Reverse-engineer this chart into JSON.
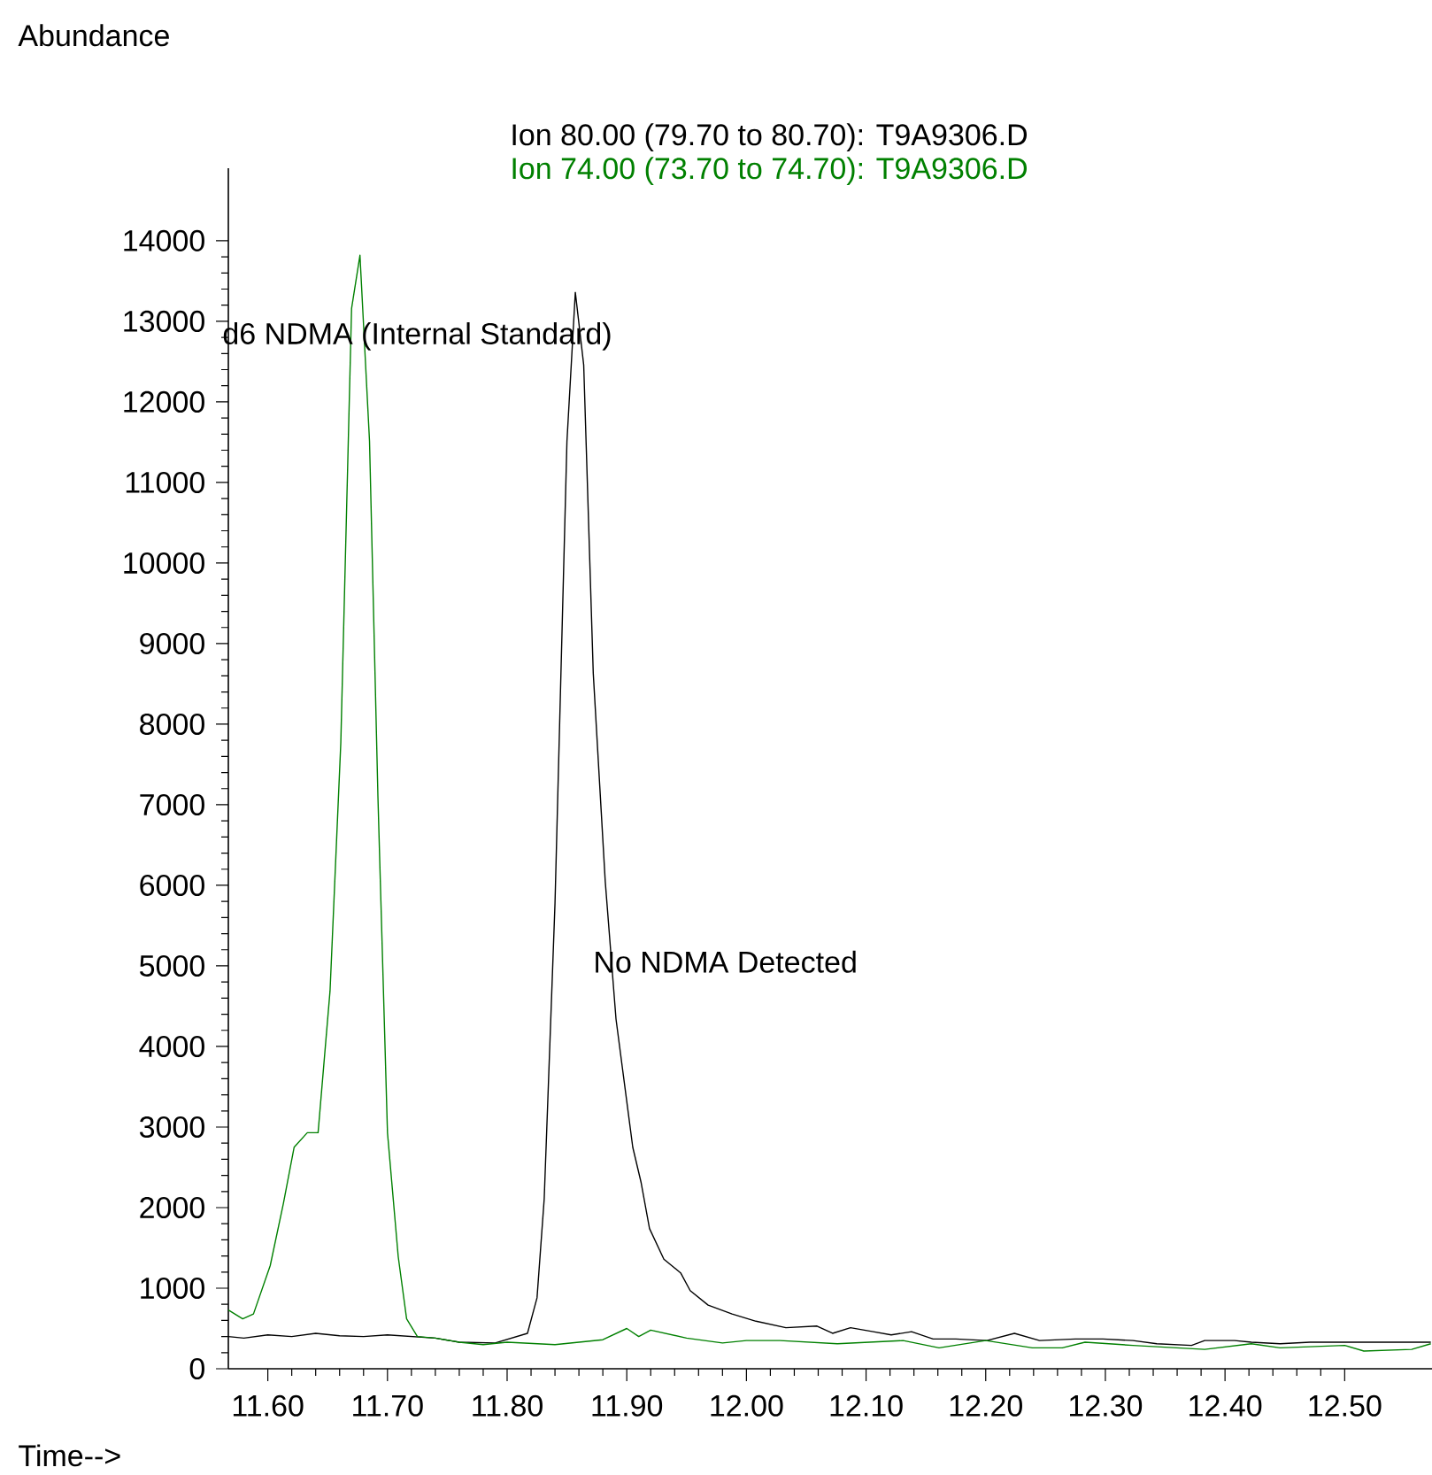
{
  "chart_data": {
    "type": "line",
    "xlabel": "Time-->",
    "ylabel": "Abundance",
    "legend": "top",
    "marker": "none",
    "line_style": "solid",
    "grid": false,
    "xlim": [
      11.567,
      12.573
    ],
    "ylim": [
      0,
      14900
    ],
    "xticks": [
      {
        "value": 11.6,
        "label": "11.60"
      },
      {
        "value": 11.7,
        "label": "11.70"
      },
      {
        "value": 11.8,
        "label": "11.80"
      },
      {
        "value": 11.9,
        "label": "11.90"
      },
      {
        "value": 12.0,
        "label": "12.00"
      },
      {
        "value": 12.1,
        "label": "12.10"
      },
      {
        "value": 12.2,
        "label": "12.20"
      },
      {
        "value": 12.3,
        "label": "12.30"
      },
      {
        "value": 12.4,
        "label": "12.40"
      },
      {
        "value": 12.5,
        "label": "12.50"
      }
    ],
    "yticks": [
      0,
      1000,
      2000,
      3000,
      4000,
      5000,
      6000,
      7000,
      8000,
      9000,
      10000,
      11000,
      12000,
      13000,
      14000
    ],
    "annotations": [
      "d6 NDMA (Internal Standard)",
      "No NDMA Detected"
    ],
    "series": [
      {
        "name": "Ion  80.00 (79.70 to 80.70): T9A9306.D",
        "color": "#000000",
        "x": [
          11.567,
          11.58,
          11.6,
          11.62,
          11.64,
          11.66,
          11.68,
          11.7,
          11.72,
          11.74,
          11.76,
          11.79,
          11.817,
          11.825,
          11.831,
          11.84,
          11.85,
          11.857,
          11.864,
          11.872,
          11.882,
          11.891,
          11.905,
          11.912,
          11.919,
          11.931,
          11.945,
          11.953,
          11.968,
          11.988,
          12.008,
          12.033,
          12.059,
          12.072,
          12.087,
          12.106,
          12.121,
          12.138,
          12.156,
          12.175,
          12.201,
          12.224,
          12.245,
          12.275,
          12.298,
          12.323,
          12.343,
          12.372,
          12.383,
          12.408,
          12.422,
          12.446,
          12.471,
          12.52,
          12.545,
          12.572
        ],
        "values": [
          400,
          380,
          420,
          400,
          440,
          410,
          400,
          420,
          400,
          380,
          330,
          320,
          440,
          880,
          2110,
          5770,
          11510,
          13360,
          12460,
          8630,
          6050,
          4340,
          2750,
          2310,
          1740,
          1360,
          1190,
          970,
          790,
          680,
          590,
          510,
          530,
          440,
          510,
          460,
          420,
          460,
          370,
          370,
          350,
          440,
          350,
          370,
          370,
          350,
          310,
          290,
          350,
          350,
          330,
          310,
          330,
          330,
          330,
          330
        ]
      },
      {
        "name": "Ion  74.00 (73.70 to 74.70): T9A9306.D",
        "color": "#008000",
        "x": [
          11.567,
          11.579,
          11.588,
          11.602,
          11.613,
          11.622,
          11.633,
          11.642,
          11.652,
          11.661,
          11.67,
          11.677,
          11.685,
          11.692,
          11.7,
          11.709,
          11.716,
          11.725,
          11.74,
          11.76,
          11.78,
          11.8,
          11.84,
          11.88,
          11.9,
          11.91,
          11.92,
          11.95,
          11.98,
          12.0,
          12.028,
          12.076,
          12.131,
          12.161,
          12.2,
          12.239,
          12.264,
          12.283,
          12.323,
          12.383,
          12.422,
          12.446,
          12.5,
          12.516,
          12.556,
          12.572
        ],
        "values": [
          730,
          620,
          680,
          1280,
          2050,
          2750,
          2930,
          2930,
          4690,
          7770,
          13160,
          13820,
          11510,
          7110,
          2930,
          1390,
          620,
          400,
          380,
          330,
          300,
          330,
          300,
          360,
          500,
          400,
          480,
          380,
          320,
          350,
          350,
          310,
          350,
          260,
          350,
          260,
          260,
          330,
          290,
          240,
          310,
          260,
          290,
          220,
          240,
          310
        ]
      }
    ]
  }
}
